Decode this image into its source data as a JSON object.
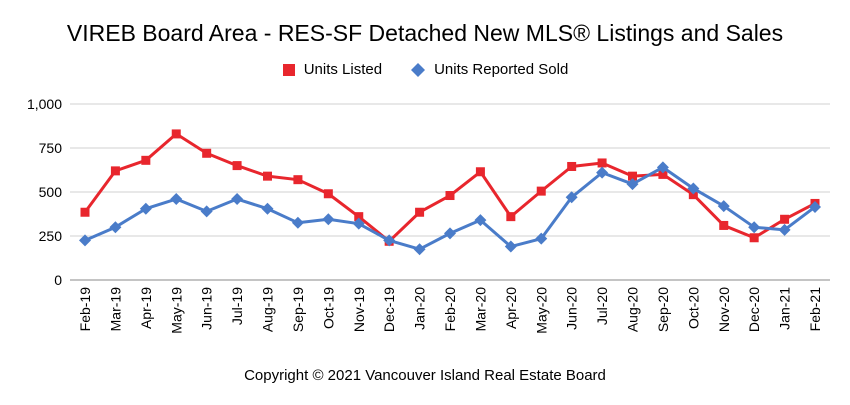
{
  "chart_data": {
    "type": "line",
    "title": "VIREB Board Area - RES-SF Detached New MLS® Listings and Sales",
    "categories": [
      "Feb-19",
      "Mar-19",
      "Apr-19",
      "May-19",
      "Jun-19",
      "Jul-19",
      "Aug-19",
      "Sep-19",
      "Oct-19",
      "Nov-19",
      "Dec-19",
      "Jan-20",
      "Feb-20",
      "Mar-20",
      "Apr-20",
      "May-20",
      "Jun-20",
      "Jul-20",
      "Aug-20",
      "Sep-20",
      "Oct-20",
      "Nov-20",
      "Dec-20",
      "Jan-21",
      "Feb-21"
    ],
    "series": [
      {
        "name": "Units Listed",
        "color": "#e8262d",
        "marker": "square",
        "values": [
          385,
          620,
          680,
          830,
          720,
          650,
          590,
          570,
          490,
          360,
          220,
          385,
          480,
          615,
          360,
          505,
          645,
          665,
          590,
          600,
          485,
          310,
          240,
          345,
          435
        ]
      },
      {
        "name": "Units Reported Sold",
        "color": "#4a7cc9",
        "marker": "diamond",
        "values": [
          225,
          300,
          405,
          460,
          390,
          460,
          405,
          325,
          345,
          320,
          225,
          175,
          265,
          340,
          190,
          235,
          470,
          610,
          545,
          640,
          520,
          420,
          300,
          285,
          415
        ]
      }
    ],
    "ylim": [
      0,
      1000
    ],
    "yticks": [
      0,
      250,
      500,
      750,
      1000
    ],
    "ytick_labels": [
      "0",
      "250",
      "500",
      "750",
      "1,000"
    ],
    "grid": true,
    "legend_position": "top-center",
    "footer": "Copyright © 2021 Vancouver Island Real Estate Board"
  }
}
